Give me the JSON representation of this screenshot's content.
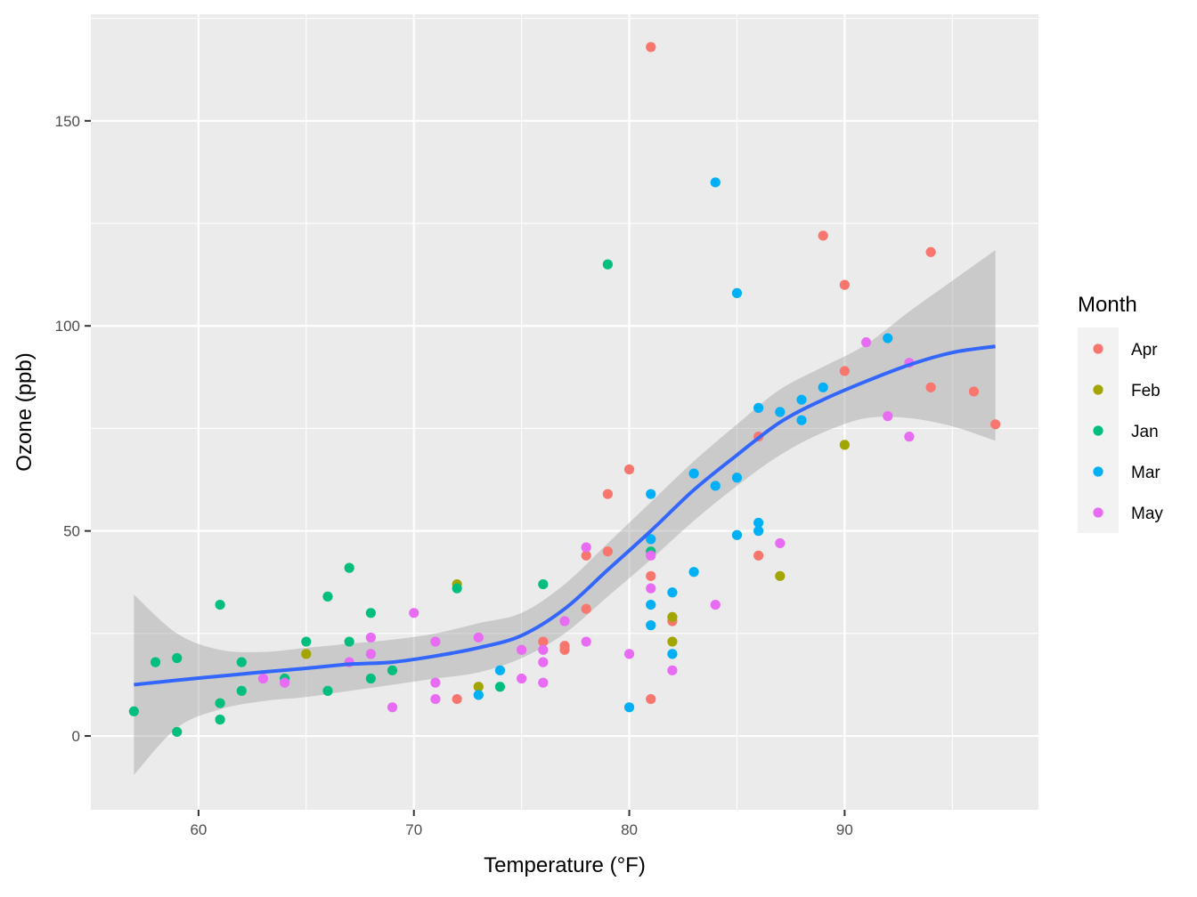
{
  "chart_data": {
    "type": "scatter",
    "title": "",
    "xlabel": "Temperature (°F)",
    "ylabel": "Ozone (ppb)",
    "xlim": [
      55,
      99
    ],
    "ylim": [
      -18,
      176
    ],
    "x_ticks": [
      60,
      70,
      80,
      90
    ],
    "y_ticks": [
      0,
      50,
      100,
      150
    ],
    "x_tick_labels": [
      "60",
      "70",
      "80",
      "90"
    ],
    "y_tick_labels": [
      "0",
      "50",
      "100",
      "150"
    ],
    "grid": true,
    "legend": {
      "title": "Month",
      "position": "right"
    },
    "series": [
      {
        "name": "Apr",
        "color": "#F8766D",
        "points": [
          [
            81,
            168
          ],
          [
            89,
            122
          ],
          [
            94,
            118
          ],
          [
            90,
            110
          ],
          [
            90,
            89
          ],
          [
            94,
            85
          ],
          [
            96,
            84
          ],
          [
            97,
            76
          ],
          [
            86,
            73
          ],
          [
            80,
            65
          ],
          [
            79,
            59
          ],
          [
            79,
            45
          ],
          [
            78,
            44
          ],
          [
            86,
            44
          ],
          [
            81,
            39
          ],
          [
            78,
            31
          ],
          [
            82,
            28
          ],
          [
            76,
            23
          ],
          [
            77,
            22
          ],
          [
            77,
            21
          ],
          [
            72,
            9
          ],
          [
            81,
            9
          ]
        ]
      },
      {
        "name": "Feb",
        "color": "#A3A500",
        "points": [
          [
            90,
            71
          ],
          [
            87,
            39
          ],
          [
            72,
            37
          ],
          [
            82,
            29
          ],
          [
            82,
            23
          ],
          [
            65,
            20
          ],
          [
            73,
            12
          ]
        ]
      },
      {
        "name": "Jan",
        "color": "#00BF7D",
        "points": [
          [
            79,
            115
          ],
          [
            81,
            45
          ],
          [
            67,
            41
          ],
          [
            76,
            37
          ],
          [
            72,
            36
          ],
          [
            66,
            34
          ],
          [
            61,
            32
          ],
          [
            68,
            30
          ],
          [
            65,
            23
          ],
          [
            67,
            23
          ],
          [
            59,
            19
          ],
          [
            58,
            18
          ],
          [
            62,
            18
          ],
          [
            69,
            16
          ],
          [
            64,
            14
          ],
          [
            68,
            14
          ],
          [
            74,
            12
          ],
          [
            62,
            11
          ],
          [
            66,
            11
          ],
          [
            61,
            8
          ],
          [
            57,
            6
          ],
          [
            61,
            4
          ],
          [
            59,
            1
          ]
        ]
      },
      {
        "name": "Mar",
        "color": "#00B0F6",
        "points": [
          [
            84,
            135
          ],
          [
            85,
            108
          ],
          [
            92,
            97
          ],
          [
            89,
            85
          ],
          [
            88,
            82
          ],
          [
            86,
            80
          ],
          [
            87,
            79
          ],
          [
            88,
            77
          ],
          [
            83,
            64
          ],
          [
            85,
            63
          ],
          [
            84,
            61
          ],
          [
            81,
            59
          ],
          [
            86,
            52
          ],
          [
            86,
            50
          ],
          [
            85,
            49
          ],
          [
            81,
            48
          ],
          [
            83,
            40
          ],
          [
            82,
            35
          ],
          [
            81,
            32
          ],
          [
            81,
            27
          ],
          [
            82,
            20
          ],
          [
            74,
            16
          ],
          [
            73,
            10
          ],
          [
            80,
            7
          ]
        ]
      },
      {
        "name": "May",
        "color": "#E76BF3",
        "points": [
          [
            91,
            96
          ],
          [
            93,
            91
          ],
          [
            92,
            78
          ],
          [
            93,
            73
          ],
          [
            87,
            47
          ],
          [
            78,
            46
          ],
          [
            81,
            44
          ],
          [
            81,
            36
          ],
          [
            84,
            32
          ],
          [
            70,
            30
          ],
          [
            77,
            28
          ],
          [
            68,
            24
          ],
          [
            73,
            24
          ],
          [
            71,
            23
          ],
          [
            78,
            23
          ],
          [
            75,
            21
          ],
          [
            76,
            21
          ],
          [
            68,
            20
          ],
          [
            80,
            20
          ],
          [
            67,
            18
          ],
          [
            76,
            18
          ],
          [
            82,
            16
          ],
          [
            63,
            14
          ],
          [
            75,
            14
          ],
          [
            64,
            13
          ],
          [
            71,
            13
          ],
          [
            76,
            13
          ],
          [
            71,
            9
          ],
          [
            69,
            7
          ]
        ]
      }
    ],
    "smooth": {
      "color": "#3366FF",
      "band_color": "#999999",
      "x": [
        57,
        59,
        61,
        63,
        65,
        67,
        69,
        71,
        73,
        75,
        77,
        79,
        81,
        83,
        85,
        87,
        89,
        91,
        93,
        95,
        97
      ],
      "y": [
        12.5,
        13.6,
        14.6,
        15.6,
        16.5,
        17.5,
        18,
        19.5,
        21.5,
        24.5,
        31,
        40.5,
        50,
        60,
        68.5,
        76.5,
        82,
        86.5,
        90.5,
        93.5,
        95
      ],
      "lower": [
        -9.5,
        2,
        6.5,
        8.5,
        9.5,
        11,
        12.5,
        14,
        15.5,
        19,
        25,
        34,
        43,
        52.5,
        61,
        68.5,
        74,
        77.5,
        77.5,
        75.5,
        72
      ],
      "upper": [
        34.5,
        25,
        21,
        20.5,
        21.5,
        22.5,
        23.5,
        25,
        27.5,
        30,
        37,
        47,
        57,
        67,
        76,
        84.5,
        90,
        95.5,
        103.5,
        111,
        118.5
      ]
    }
  }
}
